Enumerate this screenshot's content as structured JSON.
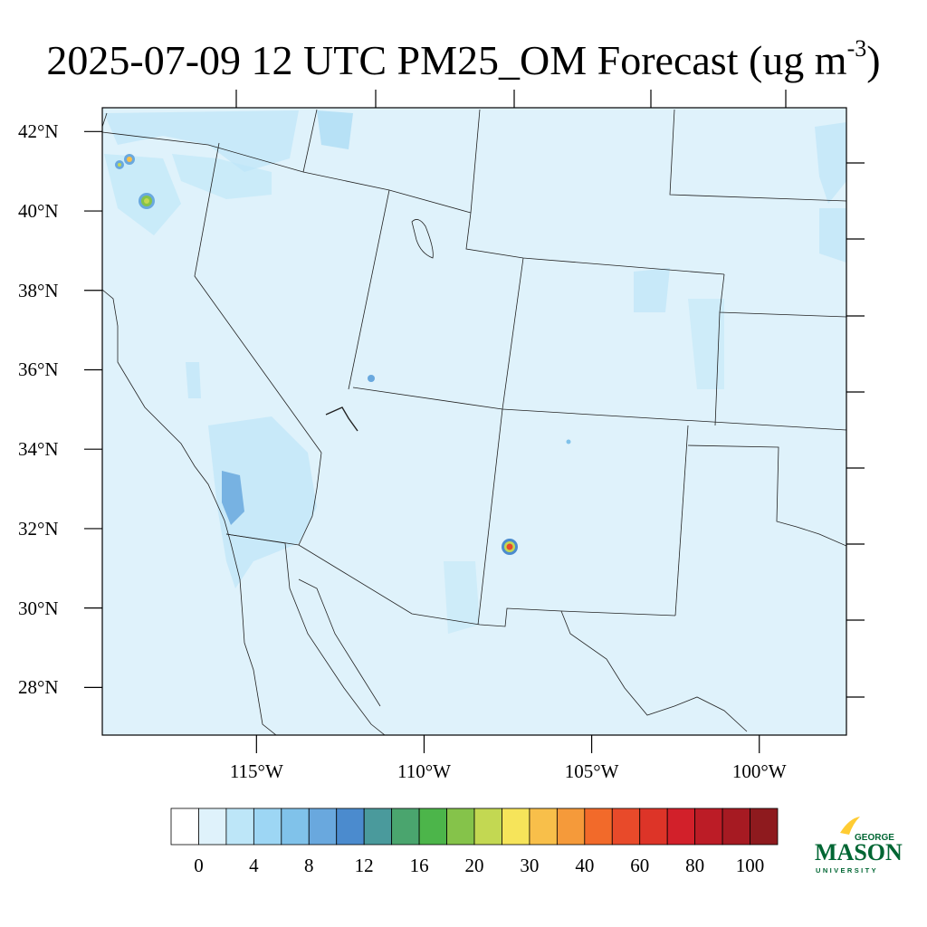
{
  "title": {
    "main": "2025-07-09 12 UTC PM25_OM Forecast (ug m",
    "superscript": "-3",
    "close": ")"
  },
  "map": {
    "extent": {
      "lon_min": -119.6,
      "lon_max": -97.4,
      "lat_min": 26.8,
      "lat_max": 42.6
    },
    "lat_ticks": [
      {
        "value": 42,
        "label": "42°N"
      },
      {
        "value": 40,
        "label": "40°N"
      },
      {
        "value": 38,
        "label": "38°N"
      },
      {
        "value": 36,
        "label": "36°N"
      },
      {
        "value": 34,
        "label": "34°N"
      },
      {
        "value": 32,
        "label": "32°N"
      },
      {
        "value": 30,
        "label": "30°N"
      },
      {
        "value": 28,
        "label": "28°N"
      }
    ],
    "lon_ticks": [
      {
        "value": -115,
        "label": "115°W"
      },
      {
        "value": -110,
        "label": "110°W"
      },
      {
        "value": -105,
        "label": "105°W"
      },
      {
        "value": -100,
        "label": "100°W"
      }
    ],
    "background_color": "#dff2fb",
    "line_color": "#222222"
  },
  "colorbar": {
    "colors": [
      "#ffffff",
      "#dff2fb",
      "#bde6f8",
      "#9dd6f4",
      "#80c2ea",
      "#69a8de",
      "#4b8bce",
      "#4a9a9c",
      "#4aa56e",
      "#4cb54a",
      "#85c34a",
      "#c3d852",
      "#f6e45a",
      "#f8bf4a",
      "#f59a3a",
      "#f26a2a",
      "#e84a2a",
      "#dd3428",
      "#d2202a",
      "#bc1c26",
      "#a61a22",
      "#8e1a1e"
    ],
    "labels": [
      "0",
      "4",
      "8",
      "12",
      "16",
      "20",
      "30",
      "40",
      "60",
      "80",
      "100"
    ]
  },
  "logo": {
    "top_text": "GEORGE",
    "main_text": "MASON",
    "bottom_text": "UNIVERSITY",
    "green": "#006633",
    "gold": "#ffcc33"
  }
}
